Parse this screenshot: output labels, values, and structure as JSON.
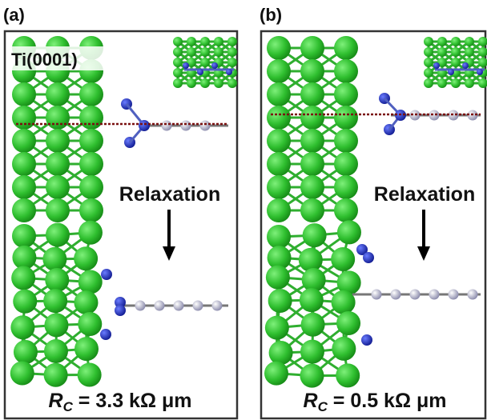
{
  "panels": [
    {
      "label": "(a)",
      "surface": "Ti(0001)",
      "process": "Relaxation",
      "resistance": {
        "symbol": "R",
        "subscript": "C",
        "text": " = 3.3 kΩ μm"
      }
    },
    {
      "label": "(b)",
      "process": "Relaxation",
      "resistance": {
        "symbol": "R",
        "subscript": "C",
        "text": " = 0.5 kΩ μm"
      }
    }
  ]
}
